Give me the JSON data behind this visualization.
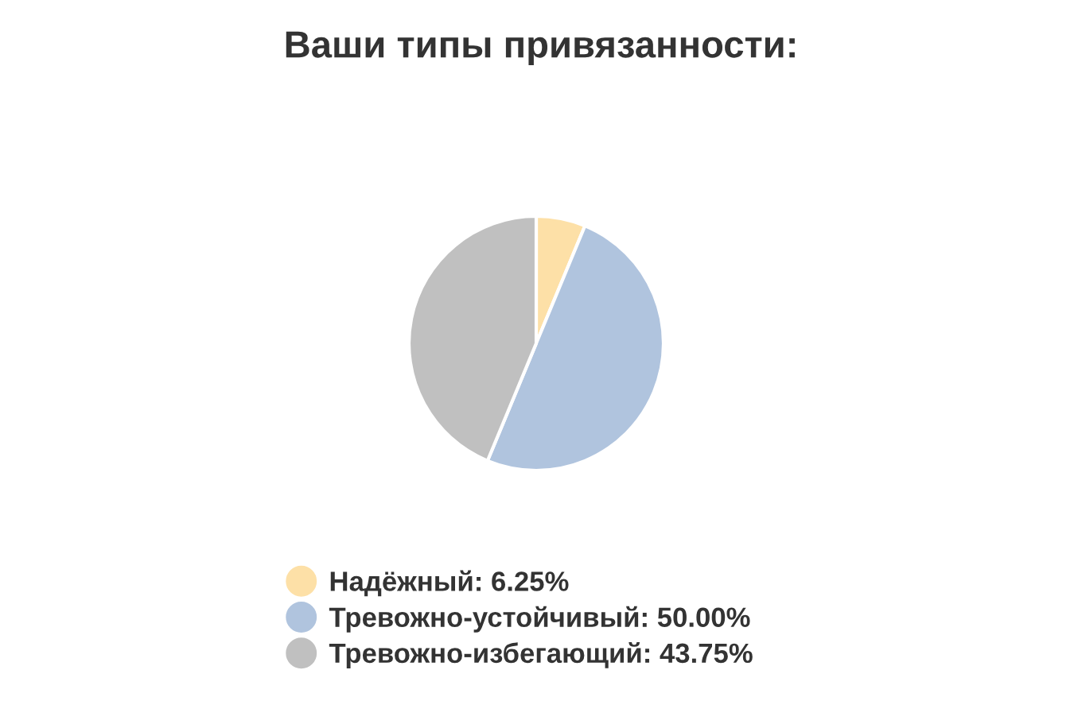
{
  "chart_data": {
    "type": "pie",
    "title": "Ваши типы привязанности:",
    "categories": [
      "Надёжный",
      "Тревожно-устойчивый",
      "Тревожно-избегающий"
    ],
    "values": [
      6.25,
      50.0,
      43.75
    ],
    "value_labels": [
      "6.25%",
      "50.00%",
      "43.75%"
    ],
    "colors": [
      "#fde0a7",
      "#b0c4de",
      "#c0c0c0"
    ],
    "legend": "bottom"
  }
}
